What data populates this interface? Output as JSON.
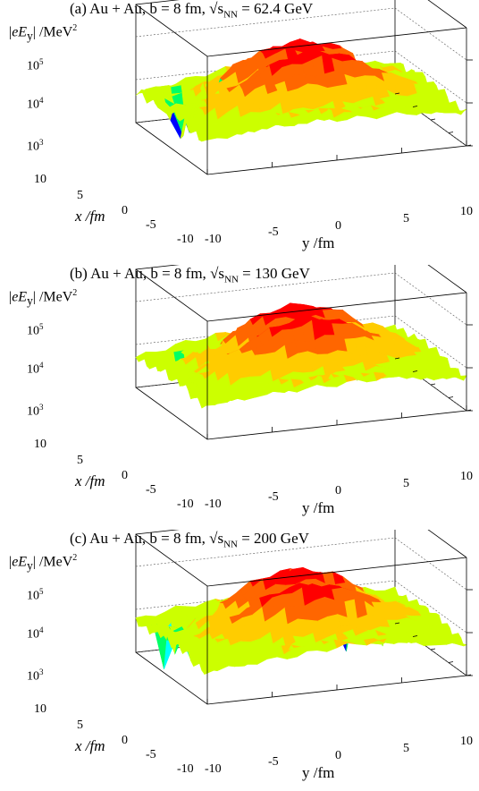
{
  "panels": [
    {
      "prefix": "(a) Au + Au, b = 8 fm,  ",
      "sqrt_sym": "√",
      "s_label": "s",
      "s_sub": "NN",
      "energy_text": " = 62.4 GeV"
    },
    {
      "prefix": "(b) Au + Au, b = 8 fm,  ",
      "sqrt_sym": "√",
      "s_label": "s",
      "s_sub": "NN",
      "energy_text": " = 130 GeV"
    },
    {
      "prefix": "(c) Au + Au, b = 8 fm,  ",
      "sqrt_sym": "√",
      "s_label": "s",
      "s_sub": "NN",
      "energy_text": " = 200 GeV"
    }
  ],
  "axes": {
    "z_label_pre": "|",
    "z_label_e": "eE",
    "z_label_sub": "y",
    "z_label_post": "| /MeV",
    "z_label_exp": "2",
    "x_label": "x /fm",
    "y_label": "y /fm",
    "x_ticks": [
      "10",
      "5",
      "0",
      "-5",
      "-10"
    ],
    "y_ticks": [
      "-10",
      "-5",
      "0",
      "5",
      "10"
    ],
    "z_ticks": [
      {
        "base": "10",
        "exp": "5"
      },
      {
        "base": "10",
        "exp": "4"
      },
      {
        "base": "10",
        "exp": "3"
      }
    ]
  },
  "chart_data": [
    {
      "type": "surface",
      "title": "(a) Au + Au, b = 8 fm, √sNN = 62.4 GeV",
      "xlabel": "x /fm",
      "ylabel": "y /fm",
      "zlabel": "|eEy| /MeV2",
      "xlim": [
        -10,
        10
      ],
      "ylim": [
        -10,
        10
      ],
      "zlim": [
        1000,
        100000
      ],
      "z_scale": "log",
      "peak_value": 100000,
      "plateau_value": 10000,
      "edge_value": 3000,
      "valley_min": 500,
      "colormap": [
        "#0000ff",
        "#00ffff",
        "#00ff66",
        "#ccff00",
        "#ffcc00",
        "#ff6600",
        "#ff0000"
      ]
    },
    {
      "type": "surface",
      "title": "(b) Au + Au, b = 8 fm, √sNN = 130 GeV",
      "xlabel": "x /fm",
      "ylabel": "y /fm",
      "zlabel": "|eEy| /MeV2",
      "xlim": [
        -10,
        10
      ],
      "ylim": [
        -10,
        10
      ],
      "zlim": [
        1000,
        100000
      ],
      "z_scale": "log",
      "peak_value": 100000,
      "plateau_value": 10000,
      "edge_value": 3000,
      "valley_min": 500,
      "colormap": [
        "#0000ff",
        "#00ffff",
        "#00ff66",
        "#ccff00",
        "#ffcc00",
        "#ff6600",
        "#ff0000"
      ]
    },
    {
      "type": "surface",
      "title": "(c) Au + Au, b = 8 fm, √sNN = 200 GeV",
      "xlabel": "x /fm",
      "ylabel": "y /fm",
      "zlabel": "|eEy| /MeV2",
      "xlim": [
        -10,
        10
      ],
      "ylim": [
        -10,
        10
      ],
      "zlim": [
        1000,
        100000
      ],
      "z_scale": "log",
      "peak_value": 100000,
      "plateau_value": 10000,
      "edge_value": 3000,
      "valley_min": 500,
      "colormap": [
        "#0000ff",
        "#00ffff",
        "#00ff66",
        "#ccff00",
        "#ffcc00",
        "#ff6600",
        "#ff0000"
      ]
    }
  ]
}
